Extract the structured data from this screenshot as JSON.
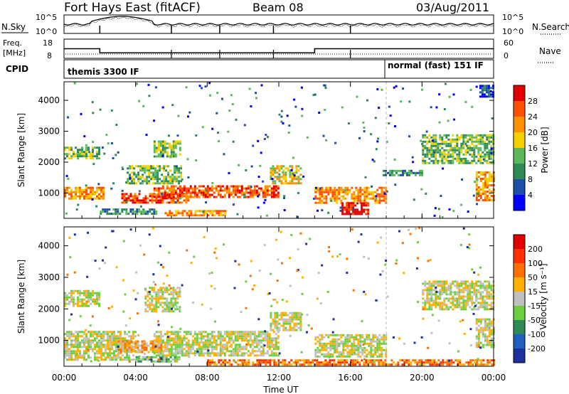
{
  "header": {
    "station": "Fort Hays East (fitACF)",
    "beam": "Beam 08",
    "date": "03/Aug/2011"
  },
  "noise_panel": {
    "left_label": "N.Sky",
    "right_label": "N.Search",
    "left_ticks": [
      "10^5",
      "10^0"
    ],
    "right_ticks": [
      "10^5",
      "10^0"
    ]
  },
  "freq_panel": {
    "left_label_1": "Freq.",
    "left_label_2": "[MHz]",
    "left_ticks": [
      "18",
      "8"
    ],
    "right_label": "Nave",
    "right_ticks": [
      "60",
      "0"
    ]
  },
  "cpid_panel": {
    "label": "CPID",
    "modes": [
      {
        "name": "themis 3300 IF",
        "start_hour": 0
      },
      {
        "name": "normal (fast) 151 IF",
        "start_hour": 18
      }
    ]
  },
  "power_panel": {
    "ylabel": "Slant Range [km]",
    "yticks": [
      "1000",
      "2000",
      "3000",
      "4000"
    ],
    "colorbar_label": "Power [dB]",
    "colorbar_ticks": [
      "28",
      "24",
      "20",
      "16",
      "12",
      "8",
      "4"
    ]
  },
  "velocity_panel": {
    "ylabel": "Slant Range [km]",
    "yticks": [
      "1000",
      "2000",
      "3000",
      "4000"
    ],
    "colorbar_label": "Velocity [m s⁻¹]",
    "colorbar_ticks": [
      "200",
      "100",
      "50",
      "15",
      "-15",
      "-50",
      "-100",
      "-200"
    ]
  },
  "xaxis": {
    "label": "Time UT",
    "ticks": [
      "00:00",
      "04:00",
      "08:00",
      "12:00",
      "16:00",
      "20:00",
      "00:00"
    ]
  },
  "colors": {
    "power_scale": [
      "#0000ff",
      "#1e4fa8",
      "#2e8b57",
      "#5cb85c",
      "#f5d000",
      "#ff9000",
      "#ff5000",
      "#e00000"
    ],
    "velocity_scale": [
      "#1e2fa0",
      "#1e5fc0",
      "#2e8b57",
      "#6ccf40",
      "#c0c0c0",
      "#ffb000",
      "#ff7000",
      "#ff3000",
      "#e00000"
    ],
    "ground_scatter": "#b8b8b8"
  },
  "chart_data": {
    "type": "heatmap",
    "title": "Fort Hays East (fitACF)",
    "subtitle": "Beam 08",
    "xlabel": "Time UT",
    "xlim": [
      0,
      24
    ],
    "ylim": [
      180,
      4600
    ],
    "frequency_steps": [
      {
        "start_hour": 0,
        "end_hour": 2,
        "MHz": 13
      },
      {
        "start_hour": 2,
        "end_hour": 14,
        "MHz": 10.5
      },
      {
        "start_hour": 14,
        "end_hour": 24,
        "MHz": 13
      }
    ],
    "power_bands": [
      {
        "t0": 0.0,
        "t1": 2.2,
        "r0": 800,
        "r1": 1200,
        "level": 5
      },
      {
        "t0": 0.0,
        "t1": 2.0,
        "r0": 2100,
        "r1": 2500,
        "level": 3
      },
      {
        "t0": 2.0,
        "t1": 5.2,
        "r0": 300,
        "r1": 500,
        "level": 2
      },
      {
        "t0": 3.2,
        "t1": 7.0,
        "r0": 700,
        "r1": 1000,
        "level": 6
      },
      {
        "t0": 5.0,
        "t1": 12.0,
        "r0": 850,
        "r1": 1250,
        "level": 6
      },
      {
        "t0": 5.5,
        "t1": 9.0,
        "r0": 300,
        "r1": 450,
        "level": 5
      },
      {
        "t0": 3.5,
        "t1": 6.5,
        "r0": 1300,
        "r1": 1900,
        "level": 3
      },
      {
        "t0": 5.0,
        "t1": 6.5,
        "r0": 2200,
        "r1": 2700,
        "level": 3
      },
      {
        "t0": 11.5,
        "t1": 13.2,
        "r0": 1300,
        "r1": 1900,
        "level": 4
      },
      {
        "t0": 14.0,
        "t1": 18.0,
        "r0": 700,
        "r1": 1200,
        "level": 5
      },
      {
        "t0": 15.5,
        "t1": 17.0,
        "r0": 300,
        "r1": 700,
        "level": 7
      },
      {
        "t0": 17.8,
        "t1": 20.0,
        "r0": 1550,
        "r1": 1750,
        "level": 2
      },
      {
        "t0": 20.0,
        "t1": 24.0,
        "r0": 2000,
        "r1": 2900,
        "level": 3
      },
      {
        "t0": 23.0,
        "t1": 24.0,
        "r0": 800,
        "r1": 1700,
        "level": 5
      },
      {
        "t0": 23.2,
        "t1": 24.0,
        "r0": 4100,
        "r1": 4500,
        "level": 1
      }
    ],
    "velocity_bands": [
      {
        "t0": 0.0,
        "t1": 4.0,
        "r0": 400,
        "r1": 1300,
        "level": 4
      },
      {
        "t0": 0.0,
        "t1": 2.0,
        "r0": 2100,
        "r1": 2600,
        "level": 4
      },
      {
        "t0": 3.0,
        "t1": 5.5,
        "r0": 600,
        "r1": 1000,
        "level": 5
      },
      {
        "t0": 4.0,
        "t1": 6.5,
        "r0": 300,
        "r1": 500,
        "level": 3
      },
      {
        "t0": 5.0,
        "t1": 12.0,
        "r0": 500,
        "r1": 1300,
        "level": 4
      },
      {
        "t0": 4.5,
        "t1": 6.5,
        "r0": 1900,
        "r1": 2700,
        "level": 4
      },
      {
        "t0": 11.5,
        "t1": 13.2,
        "r0": 1300,
        "r1": 1900,
        "level": 4
      },
      {
        "t0": 14.0,
        "t1": 18.0,
        "r0": 500,
        "r1": 1200,
        "level": 4
      },
      {
        "t0": 8.0,
        "t1": 24.0,
        "r0": 200,
        "r1": 400,
        "level": 6
      },
      {
        "t0": 20.0,
        "t1": 24.0,
        "r0": 2000,
        "r1": 2900,
        "level": 4
      },
      {
        "t0": 23.0,
        "t1": 24.0,
        "r0": 800,
        "r1": 1700,
        "level": 4
      }
    ]
  }
}
